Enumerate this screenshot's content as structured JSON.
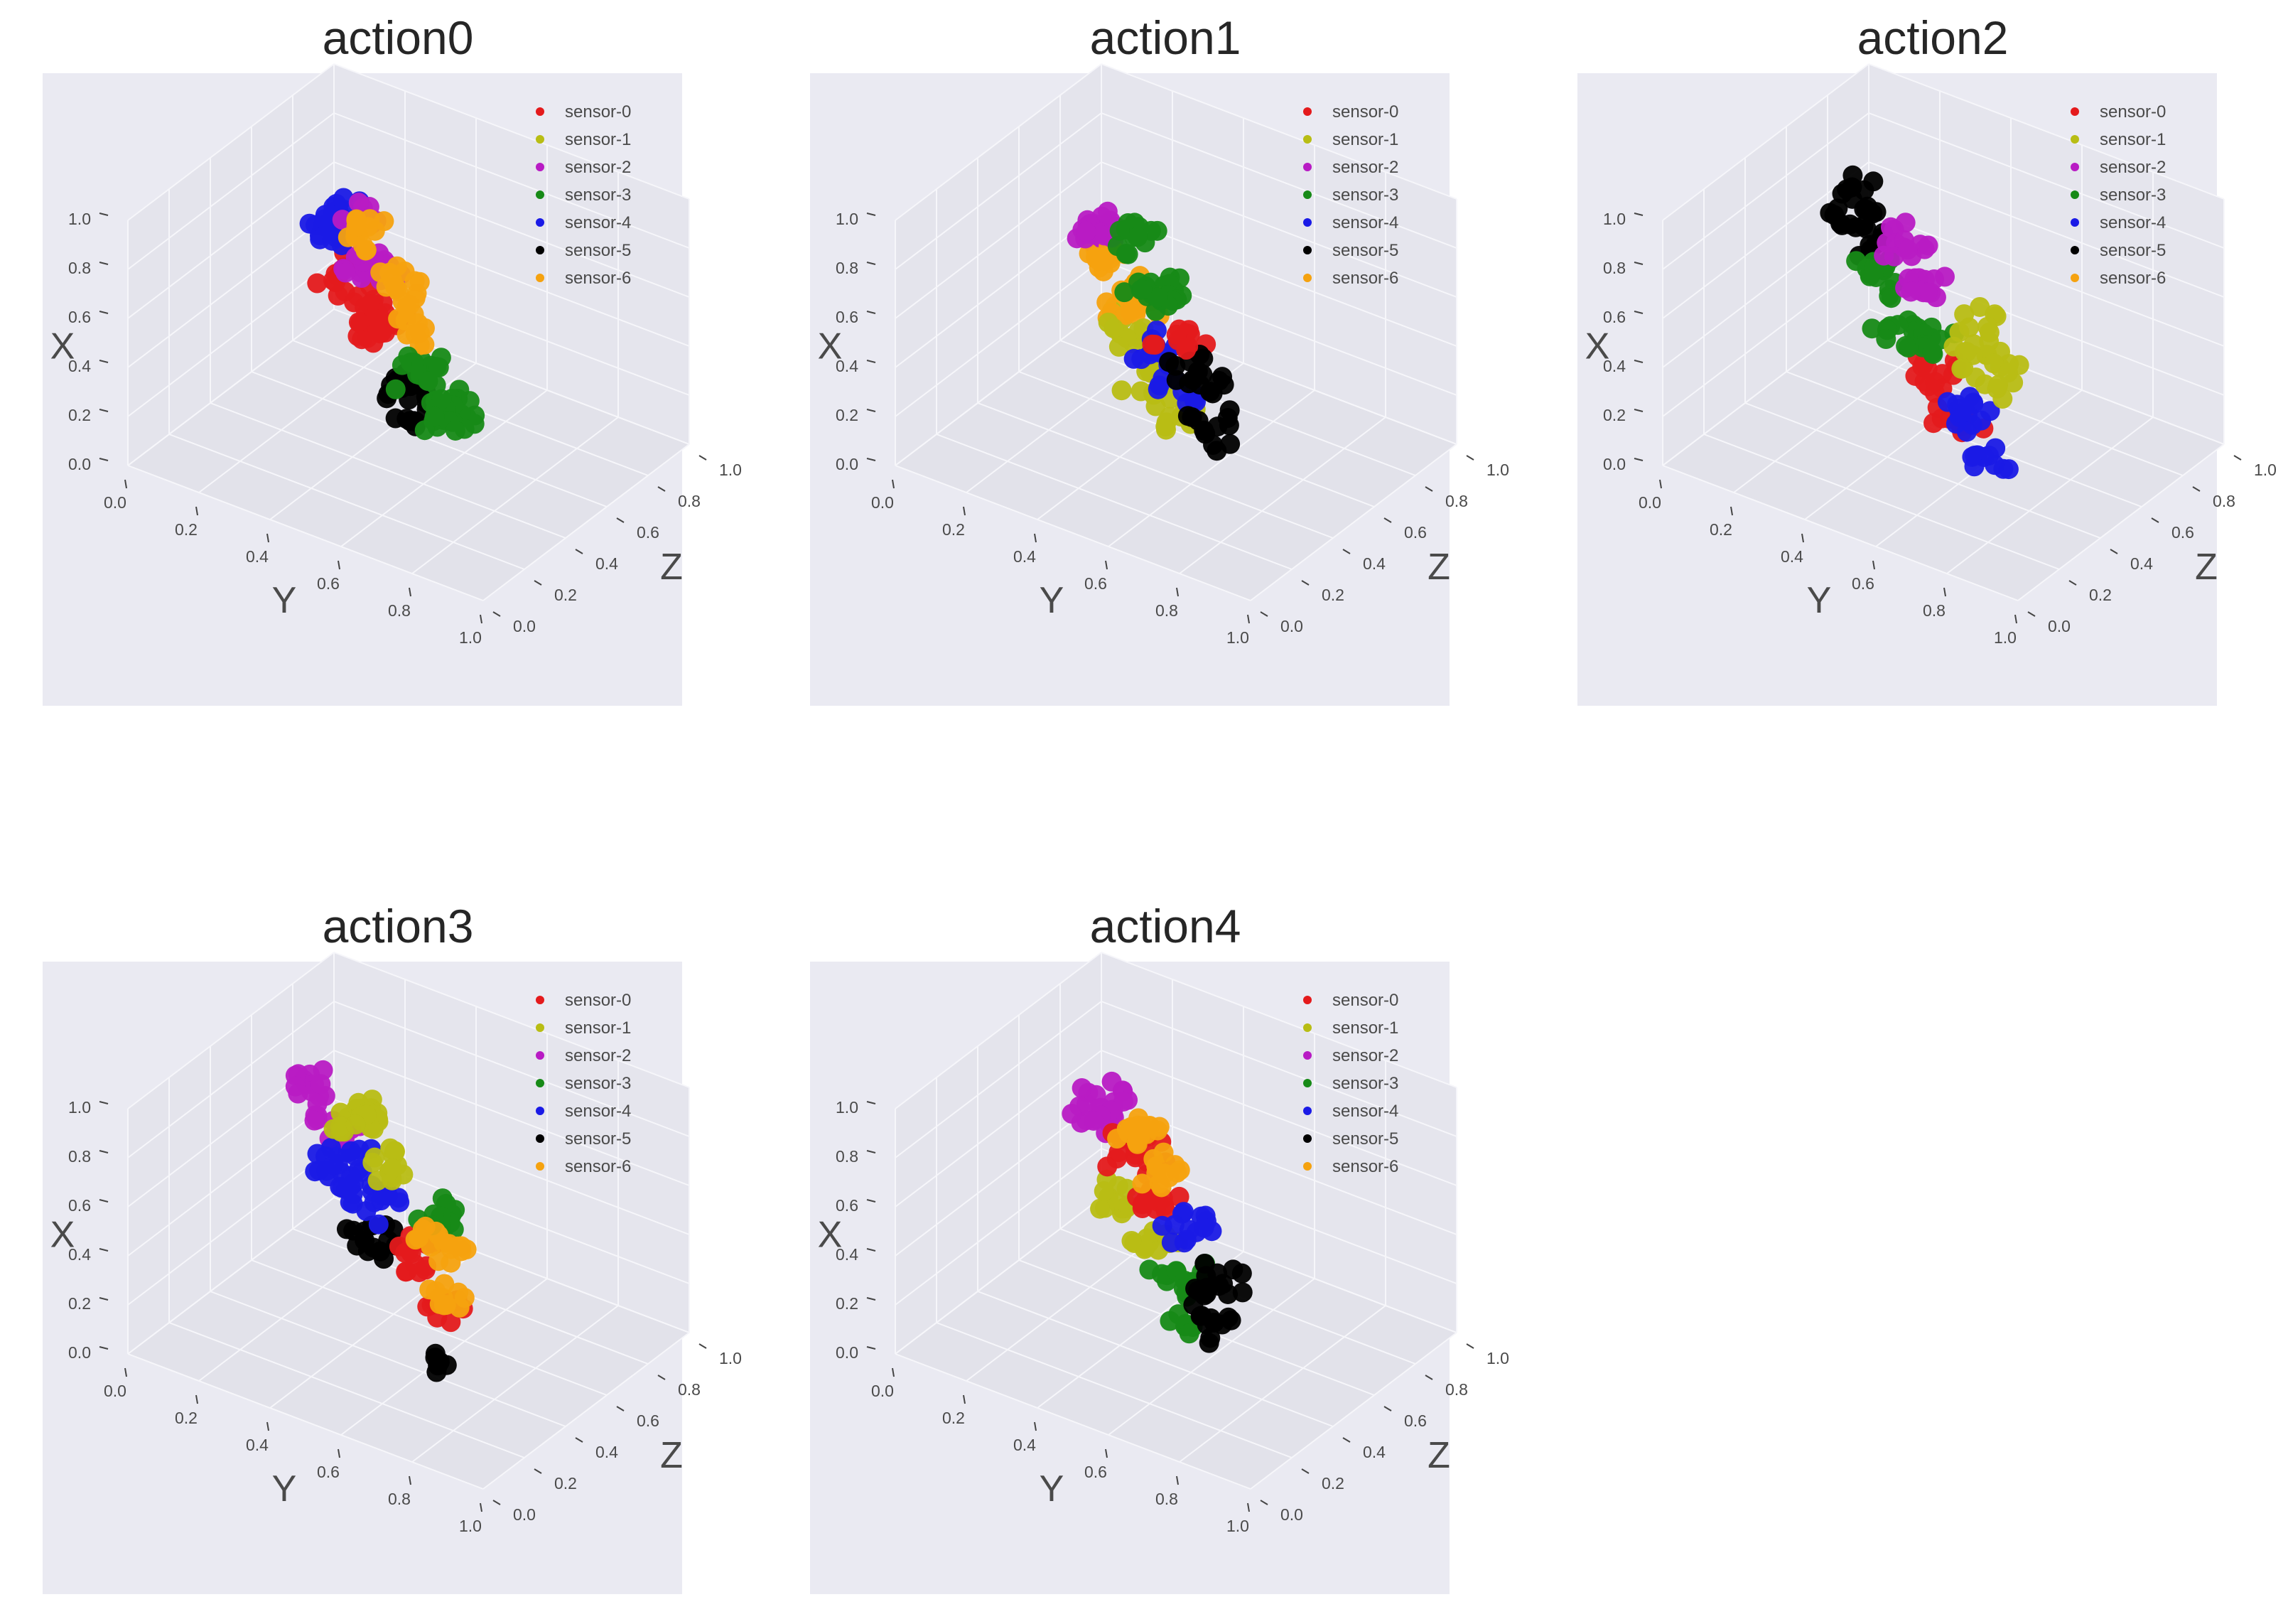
{
  "legend": {
    "placement": "top-right",
    "entries": [
      {
        "name": "sensor-0",
        "color": "#e41a1c"
      },
      {
        "name": "sensor-1",
        "color": "#b8bd14"
      },
      {
        "name": "sensor-2",
        "color": "#b81bc4"
      },
      {
        "name": "sensor-3",
        "color": "#178a17"
      },
      {
        "name": "sensor-4",
        "color": "#1a1ae6"
      },
      {
        "name": "sensor-5",
        "color": "#000000"
      },
      {
        "name": "sensor-6",
        "color": "#f5a20f"
      }
    ]
  },
  "axes": {
    "xlabel": "X",
    "ylabel": "Y",
    "zlabel": "Z",
    "x_ticks": [
      "0.0",
      "0.2",
      "0.4",
      "0.6",
      "0.8",
      "1.0"
    ],
    "y_ticks": [
      "0.0",
      "0.2",
      "0.4",
      "0.6",
      "0.8",
      "1.0"
    ],
    "z_ticks": [
      "0.0",
      "0.2",
      "0.4",
      "0.6",
      "0.8",
      "1.0"
    ],
    "range": [
      0,
      1
    ]
  },
  "chart_data": [
    {
      "type": "scatter",
      "title": "action0",
      "clusters": [
        {
          "series": "sensor-6",
          "x": 0.92,
          "y": 0.42,
          "z": 0.42,
          "n": 14,
          "spread": 0.05
        },
        {
          "series": "sensor-6",
          "x": 0.85,
          "y": 0.58,
          "z": 0.32,
          "n": 14,
          "spread": 0.05
        },
        {
          "series": "sensor-6",
          "x": 0.78,
          "y": 0.66,
          "z": 0.26,
          "n": 12,
          "spread": 0.05
        },
        {
          "series": "sensor-2",
          "x": 0.8,
          "y": 0.46,
          "z": 0.42,
          "n": 14,
          "spread": 0.05
        },
        {
          "series": "sensor-2",
          "x": 0.72,
          "y": 0.38,
          "z": 0.5,
          "n": 12,
          "spread": 0.05
        },
        {
          "series": "sensor-2",
          "x": 0.86,
          "y": 0.36,
          "z": 0.52,
          "n": 10,
          "spread": 0.05
        },
        {
          "series": "sensor-4",
          "x": 0.7,
          "y": 0.22,
          "z": 0.62,
          "n": 14,
          "spread": 0.05
        },
        {
          "series": "sensor-4",
          "x": 0.82,
          "y": 0.26,
          "z": 0.58,
          "n": 12,
          "spread": 0.05
        },
        {
          "series": "sensor-0",
          "x": 0.55,
          "y": 0.28,
          "z": 0.58,
          "n": 16,
          "spread": 0.06
        },
        {
          "series": "sensor-0",
          "x": 0.48,
          "y": 0.4,
          "z": 0.5,
          "n": 16,
          "spread": 0.06
        },
        {
          "series": "sensor-0",
          "x": 0.58,
          "y": 0.44,
          "z": 0.46,
          "n": 14,
          "spread": 0.06
        },
        {
          "series": "sensor-3",
          "x": 0.66,
          "y": 0.72,
          "z": 0.18,
          "n": 16,
          "spread": 0.06
        },
        {
          "series": "sensor-3",
          "x": 0.5,
          "y": 0.76,
          "z": 0.22,
          "n": 14,
          "spread": 0.06
        },
        {
          "series": "sensor-3",
          "x": 0.6,
          "y": 0.86,
          "z": 0.08,
          "n": 12,
          "spread": 0.05
        },
        {
          "series": "sensor-5",
          "x": 0.3,
          "y": 0.5,
          "z": 0.46,
          "n": 12,
          "spread": 0.05
        },
        {
          "series": "sensor-5",
          "x": 0.26,
          "y": 0.58,
          "z": 0.4,
          "n": 12,
          "spread": 0.05
        }
      ]
    },
    {
      "type": "scatter",
      "title": "action1",
      "clusters": [
        {
          "series": "sensor-3",
          "x": 0.92,
          "y": 0.46,
          "z": 0.4,
          "n": 14,
          "spread": 0.05
        },
        {
          "series": "sensor-3",
          "x": 0.84,
          "y": 0.58,
          "z": 0.3,
          "n": 14,
          "spread": 0.05
        },
        {
          "series": "sensor-3",
          "x": 0.76,
          "y": 0.5,
          "z": 0.36,
          "n": 10,
          "spread": 0.05
        },
        {
          "series": "sensor-2",
          "x": 0.78,
          "y": 0.28,
          "z": 0.52,
          "n": 14,
          "spread": 0.05
        },
        {
          "series": "sensor-2",
          "x": 0.7,
          "y": 0.22,
          "z": 0.6,
          "n": 10,
          "spread": 0.05
        },
        {
          "series": "sensor-6",
          "x": 0.62,
          "y": 0.28,
          "z": 0.56,
          "n": 16,
          "spread": 0.06
        },
        {
          "series": "sensor-6",
          "x": 0.52,
          "y": 0.36,
          "z": 0.52,
          "n": 14,
          "spread": 0.06
        },
        {
          "series": "sensor-6",
          "x": 0.66,
          "y": 0.46,
          "z": 0.44,
          "n": 12,
          "spread": 0.05
        },
        {
          "series": "sensor-0",
          "x": 0.74,
          "y": 0.66,
          "z": 0.24,
          "n": 12,
          "spread": 0.05
        },
        {
          "series": "sensor-5",
          "x": 0.66,
          "y": 0.74,
          "z": 0.18,
          "n": 16,
          "spread": 0.06
        },
        {
          "series": "sensor-5",
          "x": 0.52,
          "y": 0.8,
          "z": 0.14,
          "n": 12,
          "spread": 0.06
        },
        {
          "series": "sensor-4",
          "x": 0.54,
          "y": 0.54,
          "z": 0.36,
          "n": 12,
          "spread": 0.05
        },
        {
          "series": "sensor-4",
          "x": 0.44,
          "y": 0.6,
          "z": 0.32,
          "n": 10,
          "spread": 0.05
        },
        {
          "series": "sensor-1",
          "x": 0.42,
          "y": 0.36,
          "z": 0.48,
          "n": 14,
          "spread": 0.06
        },
        {
          "series": "sensor-1",
          "x": 0.34,
          "y": 0.48,
          "z": 0.42,
          "n": 14,
          "spread": 0.06
        },
        {
          "series": "sensor-1",
          "x": 0.28,
          "y": 0.6,
          "z": 0.36,
          "n": 10,
          "spread": 0.05
        }
      ]
    },
    {
      "type": "scatter",
      "title": "action2",
      "clusters": [
        {
          "series": "sensor-2",
          "x": 0.9,
          "y": 0.44,
          "z": 0.4,
          "n": 14,
          "spread": 0.05
        },
        {
          "series": "sensor-2",
          "x": 0.84,
          "y": 0.56,
          "z": 0.32,
          "n": 14,
          "spread": 0.05
        },
        {
          "series": "sensor-1",
          "x": 0.82,
          "y": 0.76,
          "z": 0.22,
          "n": 16,
          "spread": 0.06
        },
        {
          "series": "sensor-1",
          "x": 0.72,
          "y": 0.84,
          "z": 0.16,
          "n": 14,
          "spread": 0.06
        },
        {
          "series": "sensor-5",
          "x": 0.74,
          "y": 0.16,
          "z": 0.66,
          "n": 16,
          "spread": 0.06
        },
        {
          "series": "sensor-5",
          "x": 0.64,
          "y": 0.2,
          "z": 0.62,
          "n": 12,
          "spread": 0.05
        },
        {
          "series": "sensor-3",
          "x": 0.66,
          "y": 0.34,
          "z": 0.5,
          "n": 16,
          "spread": 0.06
        },
        {
          "series": "sensor-3",
          "x": 0.52,
          "y": 0.42,
          "z": 0.44,
          "n": 16,
          "spread": 0.06
        },
        {
          "series": "sensor-3",
          "x": 0.58,
          "y": 0.54,
          "z": 0.38,
          "n": 10,
          "spread": 0.05
        },
        {
          "series": "sensor-4",
          "x": 0.56,
          "y": 0.8,
          "z": 0.14,
          "n": 14,
          "spread": 0.06
        },
        {
          "series": "sensor-4",
          "x": 0.5,
          "y": 0.9,
          "z": 0.06,
          "n": 10,
          "spread": 0.05
        },
        {
          "series": "sensor-0",
          "x": 0.42,
          "y": 0.54,
          "z": 0.38,
          "n": 14,
          "spread": 0.06
        },
        {
          "series": "sensor-0",
          "x": 0.36,
          "y": 0.66,
          "z": 0.3,
          "n": 10,
          "spread": 0.05
        }
      ]
    },
    {
      "type": "scatter",
      "title": "action3",
      "clusters": [
        {
          "series": "sensor-1",
          "x": 0.96,
          "y": 0.44,
          "z": 0.4,
          "n": 16,
          "spread": 0.05
        },
        {
          "series": "sensor-1",
          "x": 0.9,
          "y": 0.58,
          "z": 0.3,
          "n": 14,
          "spread": 0.05
        },
        {
          "series": "sensor-1",
          "x": 0.84,
          "y": 0.36,
          "z": 0.48,
          "n": 10,
          "spread": 0.05
        },
        {
          "series": "sensor-3",
          "x": 0.84,
          "y": 0.74,
          "z": 0.2,
          "n": 12,
          "spread": 0.05
        },
        {
          "series": "sensor-6",
          "x": 0.8,
          "y": 0.8,
          "z": 0.14,
          "n": 16,
          "spread": 0.06
        },
        {
          "series": "sensor-6",
          "x": 0.68,
          "y": 0.88,
          "z": 0.06,
          "n": 10,
          "spread": 0.05
        },
        {
          "series": "sensor-2",
          "x": 0.76,
          "y": 0.14,
          "z": 0.66,
          "n": 14,
          "spread": 0.05
        },
        {
          "series": "sensor-2",
          "x": 0.7,
          "y": 0.24,
          "z": 0.6,
          "n": 12,
          "spread": 0.05
        },
        {
          "series": "sensor-4",
          "x": 0.64,
          "y": 0.3,
          "z": 0.52,
          "n": 16,
          "spread": 0.06
        },
        {
          "series": "sensor-4",
          "x": 0.56,
          "y": 0.42,
          "z": 0.46,
          "n": 14,
          "spread": 0.06
        },
        {
          "series": "sensor-4",
          "x": 0.48,
          "y": 0.26,
          "z": 0.6,
          "n": 10,
          "spread": 0.05
        },
        {
          "series": "sensor-0",
          "x": 0.54,
          "y": 0.64,
          "z": 0.32,
          "n": 14,
          "spread": 0.06
        },
        {
          "series": "sensor-0",
          "x": 0.48,
          "y": 0.76,
          "z": 0.22,
          "n": 12,
          "spread": 0.05
        },
        {
          "series": "sensor-5",
          "x": 0.4,
          "y": 0.42,
          "z": 0.46,
          "n": 14,
          "spread": 0.06
        },
        {
          "series": "sensor-5",
          "x": 0.22,
          "y": 0.74,
          "z": 0.24,
          "n": 6,
          "spread": 0.04
        }
      ]
    },
    {
      "type": "scatter",
      "title": "action4",
      "clusters": [
        {
          "series": "sensor-6",
          "x": 0.94,
          "y": 0.48,
          "z": 0.38,
          "n": 16,
          "spread": 0.05
        },
        {
          "series": "sensor-6",
          "x": 0.86,
          "y": 0.58,
          "z": 0.3,
          "n": 12,
          "spread": 0.05
        },
        {
          "series": "sensor-2",
          "x": 0.78,
          "y": 0.24,
          "z": 0.58,
          "n": 16,
          "spread": 0.06
        },
        {
          "series": "sensor-2",
          "x": 0.7,
          "y": 0.18,
          "z": 0.64,
          "n": 10,
          "spread": 0.05
        },
        {
          "series": "sensor-0",
          "x": 0.74,
          "y": 0.4,
          "z": 0.48,
          "n": 16,
          "spread": 0.06
        },
        {
          "series": "sensor-0",
          "x": 0.66,
          "y": 0.5,
          "z": 0.4,
          "n": 14,
          "spread": 0.06
        },
        {
          "series": "sensor-4",
          "x": 0.76,
          "y": 0.7,
          "z": 0.22,
          "n": 14,
          "spread": 0.05
        },
        {
          "series": "sensor-5",
          "x": 0.66,
          "y": 0.82,
          "z": 0.12,
          "n": 16,
          "spread": 0.06
        },
        {
          "series": "sensor-5",
          "x": 0.56,
          "y": 0.88,
          "z": 0.06,
          "n": 10,
          "spread": 0.05
        },
        {
          "series": "sensor-1",
          "x": 0.5,
          "y": 0.34,
          "z": 0.52,
          "n": 14,
          "spread": 0.06
        },
        {
          "series": "sensor-1",
          "x": 0.44,
          "y": 0.46,
          "z": 0.46,
          "n": 12,
          "spread": 0.05
        },
        {
          "series": "sensor-3",
          "x": 0.4,
          "y": 0.58,
          "z": 0.36,
          "n": 14,
          "spread": 0.06
        },
        {
          "series": "sensor-3",
          "x": 0.32,
          "y": 0.64,
          "z": 0.3,
          "n": 8,
          "spread": 0.05
        }
      ]
    }
  ]
}
